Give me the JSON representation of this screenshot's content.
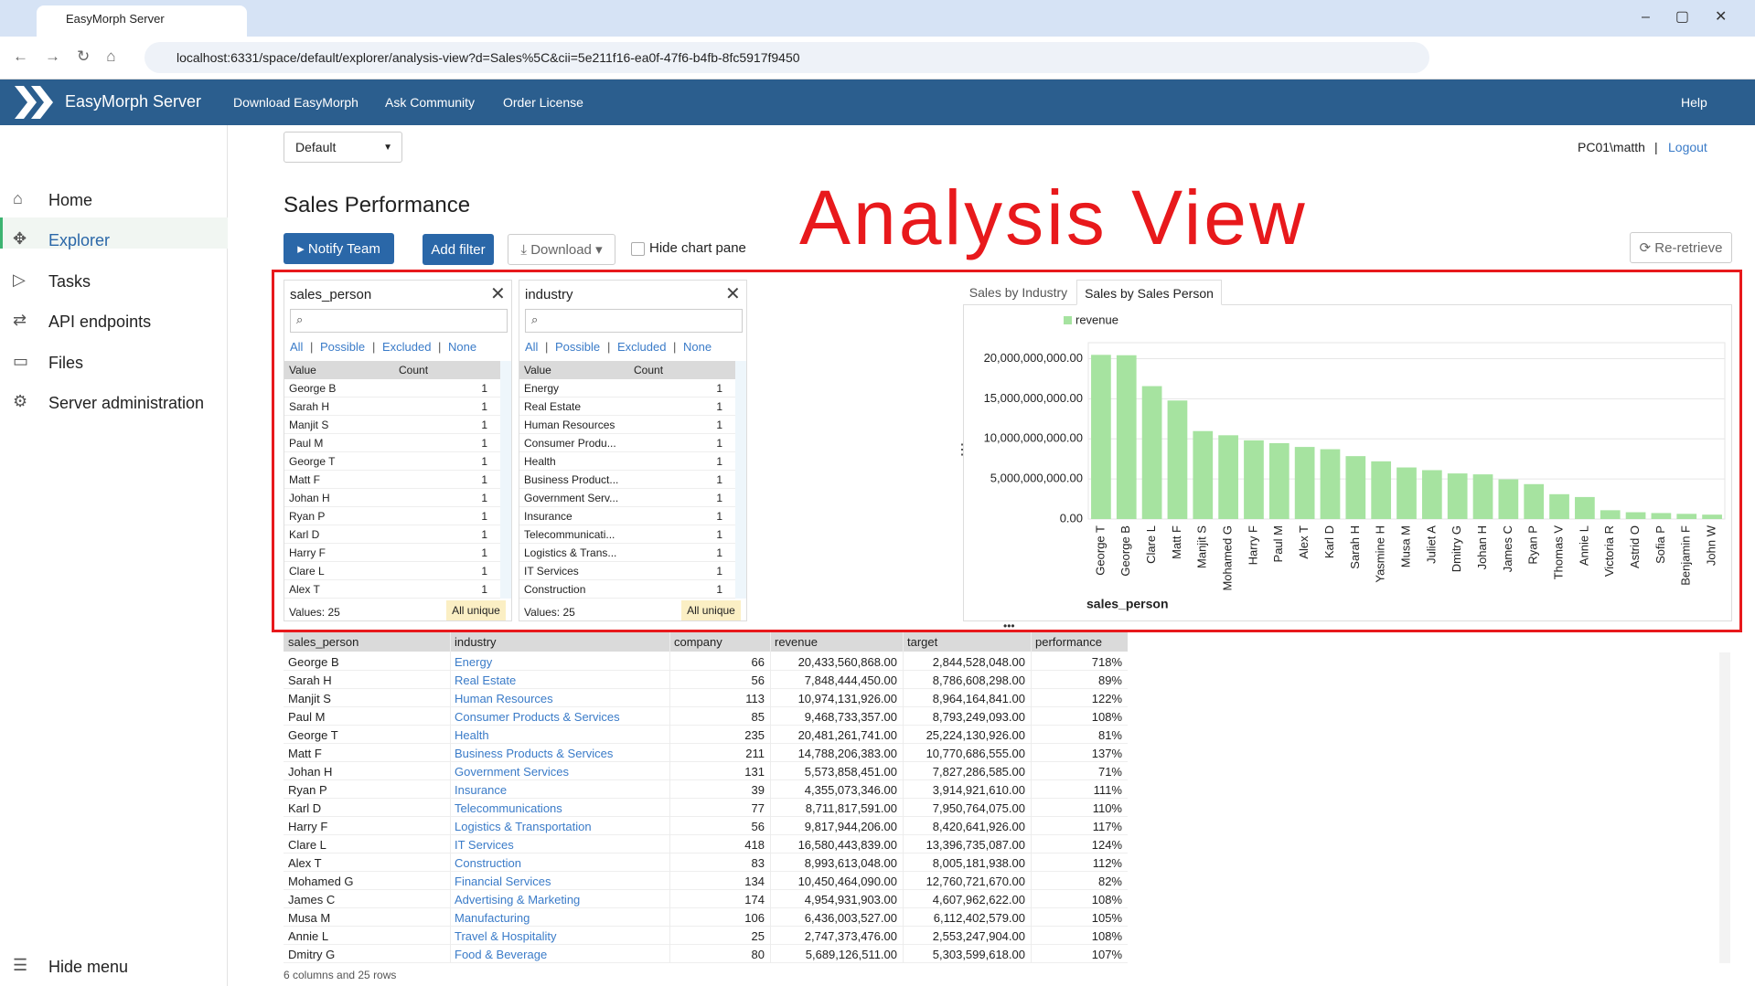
{
  "browser": {
    "tab_title": "EasyMorph Server",
    "url": "localhost:6331/space/default/explorer/analysis-view?d=Sales%5C&cii=5e211f16-ea0f-47f6-b4fb-8fc5917f9450"
  },
  "header": {
    "brand": "EasyMorph Server",
    "nav": [
      "Download EasyMorph",
      "Ask Community",
      "Order License"
    ],
    "help": "Help"
  },
  "sidebar": {
    "items": [
      "Home",
      "Explorer",
      "Tasks",
      "API endpoints",
      "Files",
      "Server administration"
    ],
    "hide_menu": "Hide menu"
  },
  "topbar": {
    "space": "Default",
    "user": "PC01\\matth",
    "separator": "|",
    "logout": "Logout"
  },
  "page": {
    "title": "Sales Performance",
    "annotation": "Analysis View",
    "notify": "Notify Team",
    "add_filter": "Add filter",
    "download": "Download",
    "hide_chart": "Hide chart pane",
    "reretrieve": "Re-retrieve"
  },
  "filters": [
    {
      "field": "sales_person",
      "links": [
        "All",
        "Possible",
        "Excluded",
        "None"
      ],
      "separator": "|",
      "columns": [
        "Value",
        "Count"
      ],
      "rows": [
        [
          "George B",
          1
        ],
        [
          "Sarah H",
          1
        ],
        [
          "Manjit S",
          1
        ],
        [
          "Paul M",
          1
        ],
        [
          "George T",
          1
        ],
        [
          "Matt F",
          1
        ],
        [
          "Johan H",
          1
        ],
        [
          "Ryan P",
          1
        ],
        [
          "Karl D",
          1
        ],
        [
          "Harry F",
          1
        ],
        [
          "Clare L",
          1
        ],
        [
          "Alex T",
          1
        ]
      ],
      "values_count": "Values: 25",
      "unique": "All unique"
    },
    {
      "field": "industry",
      "links": [
        "All",
        "Possible",
        "Excluded",
        "None"
      ],
      "separator": "|",
      "columns": [
        "Value",
        "Count"
      ],
      "rows": [
        [
          "Energy",
          1
        ],
        [
          "Real Estate",
          1
        ],
        [
          "Human Resources",
          1
        ],
        [
          "Consumer Produ...",
          1
        ],
        [
          "Health",
          1
        ],
        [
          "Business Product...",
          1
        ],
        [
          "Government Serv...",
          1
        ],
        [
          "Insurance",
          1
        ],
        [
          "Telecommunicati...",
          1
        ],
        [
          "Logistics & Trans...",
          1
        ],
        [
          "IT Services",
          1
        ],
        [
          "Construction",
          1
        ]
      ],
      "values_count": "Values: 25",
      "unique": "All unique"
    }
  ],
  "chart_tabs": [
    "Sales by Industry",
    "Sales by Sales Person"
  ],
  "chart_data": {
    "type": "bar",
    "x_label": "sales_person",
    "categories": [
      "George T",
      "George B",
      "Clare L",
      "Matt F",
      "Manjit S",
      "Mohamed G",
      "Harry F",
      "Paul M",
      "Alex T",
      "Karl D",
      "Sarah H",
      "Yasmine H",
      "Musa M",
      "Juliet A",
      "Dmitry G",
      "Johan H",
      "James C",
      "Ryan P",
      "Thomas V",
      "Annie L",
      "Victoria R",
      "Astrid O",
      "Sofia P",
      "Benjamin F",
      "John W"
    ],
    "series": [
      {
        "name": "revenue",
        "color": "#a6e3a0",
        "values": [
          20481261741,
          20433560868,
          16580443839,
          14788206383,
          10974131926,
          10450464090,
          9817944206,
          9468733357,
          8993613048,
          8711817591,
          7848444450,
          7200000000,
          6436003527,
          6100000000,
          5689126511,
          5573858451,
          4954931903,
          4355073346,
          3100000000,
          2747373476,
          1100000000,
          850000000,
          750000000,
          650000000,
          550000000
        ]
      }
    ],
    "ylim": [
      0,
      22000000000
    ],
    "yticks": [
      {
        "value": 0,
        "label": "0.00"
      },
      {
        "value": 5000000000,
        "label": "5,000,000,000.00"
      },
      {
        "value": 10000000000,
        "label": "10,000,000,000.00"
      },
      {
        "value": 15000000000,
        "label": "15,000,000,000.00"
      },
      {
        "value": 20000000000,
        "label": "20,000,000,000.00"
      }
    ],
    "grid": true,
    "legend": "top-left"
  },
  "table": {
    "columns": [
      "sales_person",
      "industry",
      "company",
      "revenue",
      "target",
      "performance"
    ],
    "rows": [
      [
        "George B",
        "Energy",
        66,
        "20,433,560,868.00",
        "2,844,528,048.00",
        "718%"
      ],
      [
        "Sarah H",
        "Real Estate",
        56,
        "7,848,444,450.00",
        "8,786,608,298.00",
        "89%"
      ],
      [
        "Manjit S",
        "Human Resources",
        113,
        "10,974,131,926.00",
        "8,964,164,841.00",
        "122%"
      ],
      [
        "Paul M",
        "Consumer Products & Services",
        85,
        "9,468,733,357.00",
        "8,793,249,093.00",
        "108%"
      ],
      [
        "George T",
        "Health",
        235,
        "20,481,261,741.00",
        "25,224,130,926.00",
        "81%"
      ],
      [
        "Matt F",
        "Business Products & Services",
        211,
        "14,788,206,383.00",
        "10,770,686,555.00",
        "137%"
      ],
      [
        "Johan H",
        "Government Services",
        131,
        "5,573,858,451.00",
        "7,827,286,585.00",
        "71%"
      ],
      [
        "Ryan P",
        "Insurance",
        39,
        "4,355,073,346.00",
        "3,914,921,610.00",
        "111%"
      ],
      [
        "Karl D",
        "Telecommunications",
        77,
        "8,711,817,591.00",
        "7,950,764,075.00",
        "110%"
      ],
      [
        "Harry F",
        "Logistics & Transportation",
        56,
        "9,817,944,206.00",
        "8,420,641,926.00",
        "117%"
      ],
      [
        "Clare L",
        "IT Services",
        418,
        "16,580,443,839.00",
        "13,396,735,087.00",
        "124%"
      ],
      [
        "Alex T",
        "Construction",
        83,
        "8,993,613,048.00",
        "8,005,181,938.00",
        "112%"
      ],
      [
        "Mohamed G",
        "Financial Services",
        134,
        "10,450,464,090.00",
        "12,760,721,670.00",
        "82%"
      ],
      [
        "James C",
        "Advertising & Marketing",
        174,
        "4,954,931,903.00",
        "4,607,962,622.00",
        "108%"
      ],
      [
        "Musa M",
        "Manufacturing",
        106,
        "6,436,003,527.00",
        "6,112,402,579.00",
        "105%"
      ],
      [
        "Annie L",
        "Travel & Hospitality",
        25,
        "2,747,373,476.00",
        "2,553,247,904.00",
        "108%"
      ],
      [
        "Dmitry G",
        "Food & Beverage",
        80,
        "5,689,126,511.00",
        "5,303,599,618.00",
        "107%"
      ]
    ],
    "footer": "6 columns and 25 rows"
  }
}
